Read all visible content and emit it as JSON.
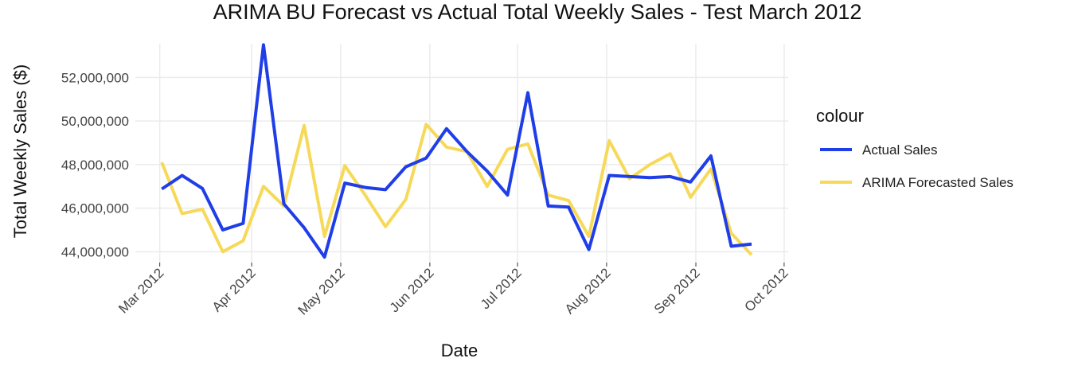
{
  "chart_data": {
    "type": "line",
    "title": "ARIMA BU Forecast vs Actual Total Weekly Sales -  Test March 2012",
    "x_label": "Date",
    "y_label": "Total Weekly Sales ($)",
    "legend_title": "colour",
    "x": [
      0,
      1,
      2,
      3,
      4,
      5,
      6,
      7,
      8,
      9,
      10,
      11,
      12,
      13,
      14,
      15,
      16,
      17,
      18,
      19,
      20,
      21,
      22,
      23,
      24,
      25,
      26,
      27,
      28,
      29
    ],
    "xlim": [
      -1.3,
      30.8
    ],
    "xticks": [
      {
        "value": -0.1,
        "label": "Mar 2012"
      },
      {
        "value": 4.42,
        "label": "Apr 2012"
      },
      {
        "value": 8.8,
        "label": "May 2012"
      },
      {
        "value": 13.18,
        "label": "Jun 2012"
      },
      {
        "value": 17.49,
        "label": "Jul 2012"
      },
      {
        "value": 21.87,
        "label": "Aug 2012"
      },
      {
        "value": 26.26,
        "label": "Sep 2012"
      },
      {
        "value": 30.6,
        "label": "Oct 2012"
      }
    ],
    "ylim": [
      43500000,
      53550000
    ],
    "yticks": [
      {
        "value": 44000000,
        "label": "44,000,000"
      },
      {
        "value": 46000000,
        "label": "46,000,000"
      },
      {
        "value": 48000000,
        "label": "48,000,000"
      },
      {
        "value": 50000000,
        "label": "50,000,000"
      },
      {
        "value": 52000000,
        "label": "52,000,000"
      }
    ],
    "grid": true,
    "legend": "right",
    "series": [
      {
        "name": "Actual Sales",
        "color": "#1f3ee8",
        "values": [
          46880000,
          47500000,
          46900000,
          45000000,
          45300000,
          53500000,
          46200000,
          45100000,
          43750000,
          47150000,
          46950000,
          46850000,
          47900000,
          48300000,
          49650000,
          48600000,
          47700000,
          46600000,
          51300000,
          46100000,
          46050000,
          44100000,
          47500000,
          47450000,
          47400000,
          47450000,
          47200000,
          48400000,
          44250000,
          44350000
        ]
      },
      {
        "name": "ARIMA Forecasted Sales",
        "color": "#f7d95a",
        "values": [
          48100000,
          45750000,
          45950000,
          44000000,
          44500000,
          47000000,
          46100000,
          49800000,
          44700000,
          47950000,
          46600000,
          45150000,
          46400000,
          49850000,
          48800000,
          48600000,
          47000000,
          48700000,
          48950000,
          46600000,
          46350000,
          44700000,
          49100000,
          47350000,
          48000000,
          48500000,
          46500000,
          47800000,
          44850000,
          43850000
        ]
      }
    ]
  }
}
